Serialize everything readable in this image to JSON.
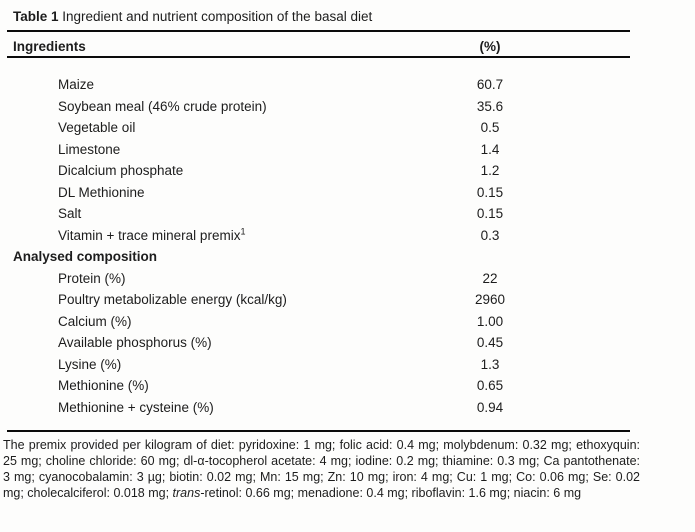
{
  "title": {
    "bold": "Table 1",
    "rest": " Ingredient and nutrient composition of the basal diet"
  },
  "table": {
    "header": {
      "col_ingredients": "Ingredients",
      "col_percent": "(%)"
    },
    "rows": [
      {
        "label": "Maize",
        "value": "60.7"
      },
      {
        "label": "Soybean meal (46% crude protein)",
        "value": "35.6"
      },
      {
        "label": "Vegetable oil",
        "value": "0.5"
      },
      {
        "label": "Limestone",
        "value": "1.4"
      },
      {
        "label": "Dicalcium phosphate",
        "value": "1.2"
      },
      {
        "label": "DL Methionine",
        "value": "0.15"
      },
      {
        "label": "Salt",
        "value": "0.15"
      },
      {
        "label": "Vitamin + trace mineral premix",
        "sup": "1",
        "value": "0.3"
      },
      {
        "label": "Analysed composition",
        "section": true
      },
      {
        "label": "Protein (%)",
        "value": "22"
      },
      {
        "label": "Poultry metabolizable energy (kcal/kg)",
        "value": "2960"
      },
      {
        "label": "Calcium (%)",
        "value": "1.00"
      },
      {
        "label": "Available phosphorus (%)",
        "value": "0.45"
      },
      {
        "label": "Lysine (%)",
        "value": "1.3"
      },
      {
        "label": "Methionine (%)",
        "value": "0.65"
      },
      {
        "label": "Methionine + cysteine (%)",
        "value": "0.94"
      }
    ]
  },
  "footnote": {
    "part1": "The premix provided per kilogram of diet: pyridoxine: 1 mg; folic acid: 0.4 mg; molybdenum: 0.32 mg; ethoxyquin: 25 mg; choline chloride: 60 mg; dl-α-tocopherol acetate: 4 mg; iodine: 0.2 mg; thiamine: 0.3 mg; Ca pantothenate: 3 mg; cyanocobalamin: 3 µg; biotin: 0.02 mg; Mn: 15 mg; Zn: 10 mg; iron: 4 mg; Cu: 1 mg; Co: 0.06 mg; Se: 0.02 mg; cholecalciferol: 0.018 mg; ",
    "italic": "trans",
    "part2": "-retinol: 0.66 mg; menadione: 0.4 mg; riboflavin: 1.6 mg; niacin: 6 mg"
  },
  "colors": {
    "text": "#1d1d1d",
    "rule": "#0b0b0b",
    "background": "#fdfdfc"
  }
}
